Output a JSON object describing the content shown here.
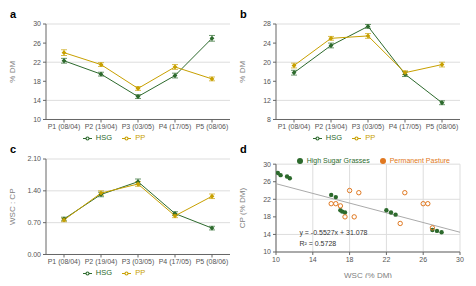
{
  "chart_data": [
    {
      "type": "line",
      "title": "a",
      "categories": [
        "P1 (08/04)",
        "P2 (19/04)",
        "P3 (03/05)",
        "P4 (17/05)",
        "P5 (08/06)"
      ],
      "y_label": "% DM",
      "ylim": [
        10,
        30
      ],
      "yticks": [
        10,
        14,
        18,
        22,
        26,
        30
      ],
      "grid": "y",
      "legend": "bottom",
      "series": [
        {
          "name": "HSG",
          "color": "#2d6a2d",
          "marker": "diamond",
          "values": [
            22.3,
            19.5,
            14.8,
            19.2,
            27.0
          ],
          "errors": [
            0.5,
            0.4,
            0.4,
            0.5,
            0.6
          ]
        },
        {
          "name": "PP",
          "color": "#c8a000",
          "marker": "diamond",
          "values": [
            24.0,
            21.5,
            16.5,
            21.0,
            18.5
          ],
          "errors": [
            0.6,
            0.4,
            0.4,
            0.5,
            0.4
          ]
        }
      ]
    },
    {
      "type": "line",
      "title": "b",
      "categories": [
        "P1 (08/04)",
        "P2 (19/04)",
        "P3 (03/05)",
        "P4 (17/05)",
        "P5 (08/06)"
      ],
      "y_label": "% DM",
      "ylim": [
        8,
        28
      ],
      "yticks": [
        8,
        12,
        16,
        20,
        24,
        28
      ],
      "grid": "y",
      "legend": "bottom",
      "series": [
        {
          "name": "HSG",
          "color": "#2d6a2d",
          "marker": "diamond",
          "values": [
            17.8,
            23.5,
            27.5,
            17.5,
            11.5
          ],
          "errors": [
            0.5,
            0.5,
            0.4,
            0.5,
            0.4
          ]
        },
        {
          "name": "PP",
          "color": "#c8a000",
          "marker": "diamond",
          "values": [
            19.3,
            25.0,
            25.5,
            17.8,
            19.5
          ],
          "errors": [
            0.5,
            0.4,
            0.5,
            0.4,
            0.5
          ]
        }
      ]
    },
    {
      "type": "line",
      "title": "c",
      "categories": [
        "P1 (08/04)",
        "P2 (19/04)",
        "P3 (03/05)",
        "P4 (17/05)",
        "P5 (08/06)"
      ],
      "y_label": "WSC : CP",
      "ylim": [
        0,
        2.1
      ],
      "yticks": [
        {
          "value": 0,
          "label": "0.00"
        },
        {
          "value": 0.7,
          "label": "0.70"
        },
        {
          "value": 1.4,
          "label": "1.40"
        },
        {
          "value": 2.1,
          "label": "2.10"
        }
      ],
      "grid": "y",
      "legend": "bottom",
      "series": [
        {
          "name": "HSG",
          "color": "#2d6a2d",
          "marker": "diamond",
          "values": [
            0.78,
            1.32,
            1.6,
            0.9,
            0.58
          ],
          "errors": [
            0.04,
            0.05,
            0.06,
            0.04,
            0.04
          ]
        },
        {
          "name": "PP",
          "color": "#c8a000",
          "marker": "diamond",
          "values": [
            0.76,
            1.35,
            1.55,
            0.85,
            1.28
          ],
          "errors": [
            0.04,
            0.05,
            0.05,
            0.04,
            0.05
          ]
        }
      ]
    },
    {
      "type": "scatter",
      "title": "d",
      "x_label": "WSC (% DM)",
      "y_label": "CP (% DM)",
      "xlim": [
        10,
        30
      ],
      "ylim": [
        10,
        30
      ],
      "xticks": [
        10,
        14,
        18,
        22,
        26,
        30
      ],
      "yticks": [
        10,
        14,
        18,
        22,
        26,
        30
      ],
      "grid": true,
      "legend": "top",
      "annotations": [
        "y = -0.5527x + 31.078",
        "R² = 0.5728"
      ],
      "series": [
        {
          "type": "line",
          "color": "#aaaaaa",
          "x": [
            10,
            30
          ],
          "values": [
            25.551,
            14.497
          ]
        },
        {
          "name": "High Sugar Grasses",
          "color": "#2d6a2d",
          "marker": "circle",
          "x": [
            10.2,
            10.5,
            11.2,
            11.5,
            16.0,
            16.5,
            17.0,
            17.2,
            17.5,
            22.0,
            22.5,
            23.0,
            27.0,
            27.5,
            28.0
          ],
          "values": [
            28.0,
            27.5,
            27.2,
            26.8,
            23.0,
            22.5,
            19.5,
            19.2,
            19.0,
            19.5,
            19.0,
            18.5,
            15.0,
            14.8,
            14.5
          ]
        },
        {
          "name": "Permanent Pasture",
          "color": "#e07820",
          "marker": "circle_open",
          "x": [
            16.0,
            16.5,
            17.0,
            17.5,
            18.0,
            18.5,
            19.0,
            23.5,
            24.0,
            26.0,
            26.5,
            27.0
          ],
          "values": [
            21.0,
            21.0,
            20.5,
            18.0,
            24.0,
            18.0,
            23.5,
            16.5,
            23.5,
            21.0,
            21.0,
            15.5
          ]
        }
      ]
    }
  ]
}
